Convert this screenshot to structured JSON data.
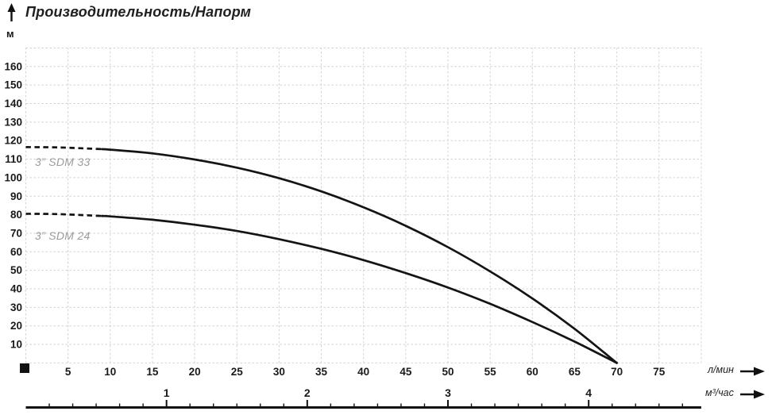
{
  "chart_data": {
    "type": "line",
    "title": "Производительность/Напорм",
    "ylabel": "м",
    "ylim_m": [
      0,
      170
    ],
    "xlim_lmin": [
      0,
      80
    ],
    "grid": "dashed, every 5 л/мин and every 10 м",
    "legend_position": "labels next to curves",
    "y_ticks": [
      10,
      20,
      30,
      40,
      50,
      60,
      70,
      80,
      90,
      100,
      110,
      120,
      130,
      140,
      150,
      160
    ],
    "x_axes": [
      {
        "unit": "л/мин",
        "ticks": [
          5,
          10,
          15,
          20,
          25,
          30,
          35,
          40,
          45,
          50,
          55,
          60,
          65,
          70,
          75
        ]
      },
      {
        "unit": "м³/час",
        "ticks": [
          1,
          2,
          3,
          4
        ]
      }
    ],
    "series": [
      {
        "name": "3” SDM 33",
        "dashed_points_lmin_m": [
          [
            0,
            116.5
          ],
          [
            4,
            116.3
          ],
          [
            9,
            115.4
          ]
        ],
        "solid_points_lmin_m": [
          [
            9,
            115.4
          ],
          [
            10,
            115.1
          ],
          [
            15,
            113.1
          ],
          [
            20,
            109.8
          ],
          [
            25,
            105.4
          ],
          [
            30,
            99.7
          ],
          [
            35,
            92.6
          ],
          [
            40,
            84
          ],
          [
            45,
            74
          ],
          [
            50,
            62.5
          ],
          [
            55,
            49.4
          ],
          [
            60,
            34.8
          ],
          [
            65,
            18.4
          ],
          [
            70,
            0
          ]
        ]
      },
      {
        "name": "3” SDM 24",
        "dashed_points_lmin_m": [
          [
            0,
            80.5
          ],
          [
            4,
            80.3
          ],
          [
            9,
            79.3
          ]
        ],
        "solid_points_lmin_m": [
          [
            9,
            79.3
          ],
          [
            10,
            79.1
          ],
          [
            15,
            77.3
          ],
          [
            20,
            74.6
          ],
          [
            25,
            71.2
          ],
          [
            30,
            66.8
          ],
          [
            35,
            61.6
          ],
          [
            40,
            55.5
          ],
          [
            45,
            48.5
          ],
          [
            50,
            40.7
          ],
          [
            55,
            31.9
          ],
          [
            60,
            22.1
          ],
          [
            65,
            11.5
          ],
          [
            70,
            0
          ]
        ]
      }
    ]
  },
  "colors": {
    "curve": "#141414",
    "grid": "#d2d2d2",
    "tick_text": "#1a1a1a",
    "series_label": "#9b9b9b"
  }
}
